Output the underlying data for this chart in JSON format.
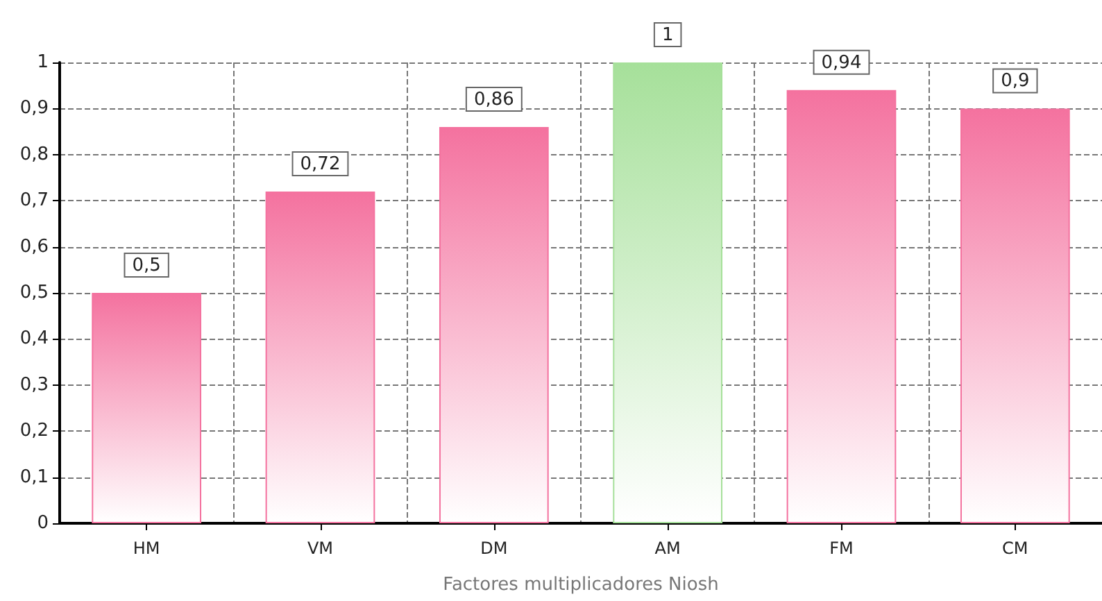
{
  "chart_data": {
    "type": "bar",
    "xlabel": "Factores multiplicadores Niosh",
    "categories": [
      "HM",
      "VM",
      "DM",
      "AM",
      "FM",
      "CM"
    ],
    "values": [
      0.5,
      0.72,
      0.86,
      1,
      0.94,
      0.9
    ],
    "value_labels": [
      "0,5",
      "0,72",
      "0,86",
      "1",
      "0,94",
      "0,9"
    ],
    "colors": [
      "#f4729f",
      "#f4729f",
      "#f4729f",
      "#a6e09a",
      "#f4729f",
      "#f4729f"
    ],
    "ylim": [
      0,
      1
    ],
    "yticks": [
      0,
      {
        "value": 0.1,
        "label": "0,1"
      },
      {
        "value": 0.2,
        "label": "0,2"
      },
      {
        "value": 0.3,
        "label": "0,3"
      },
      {
        "value": 0.4,
        "label": "0,4"
      },
      {
        "value": 0.5,
        "label": "0,5"
      },
      {
        "value": 0.6,
        "label": "0,6"
      },
      {
        "value": 0.7,
        "label": "0,7"
      },
      {
        "value": 0.8,
        "label": "0,8"
      },
      {
        "value": 0.9,
        "label": "0,9"
      },
      1
    ],
    "grid": true
  }
}
